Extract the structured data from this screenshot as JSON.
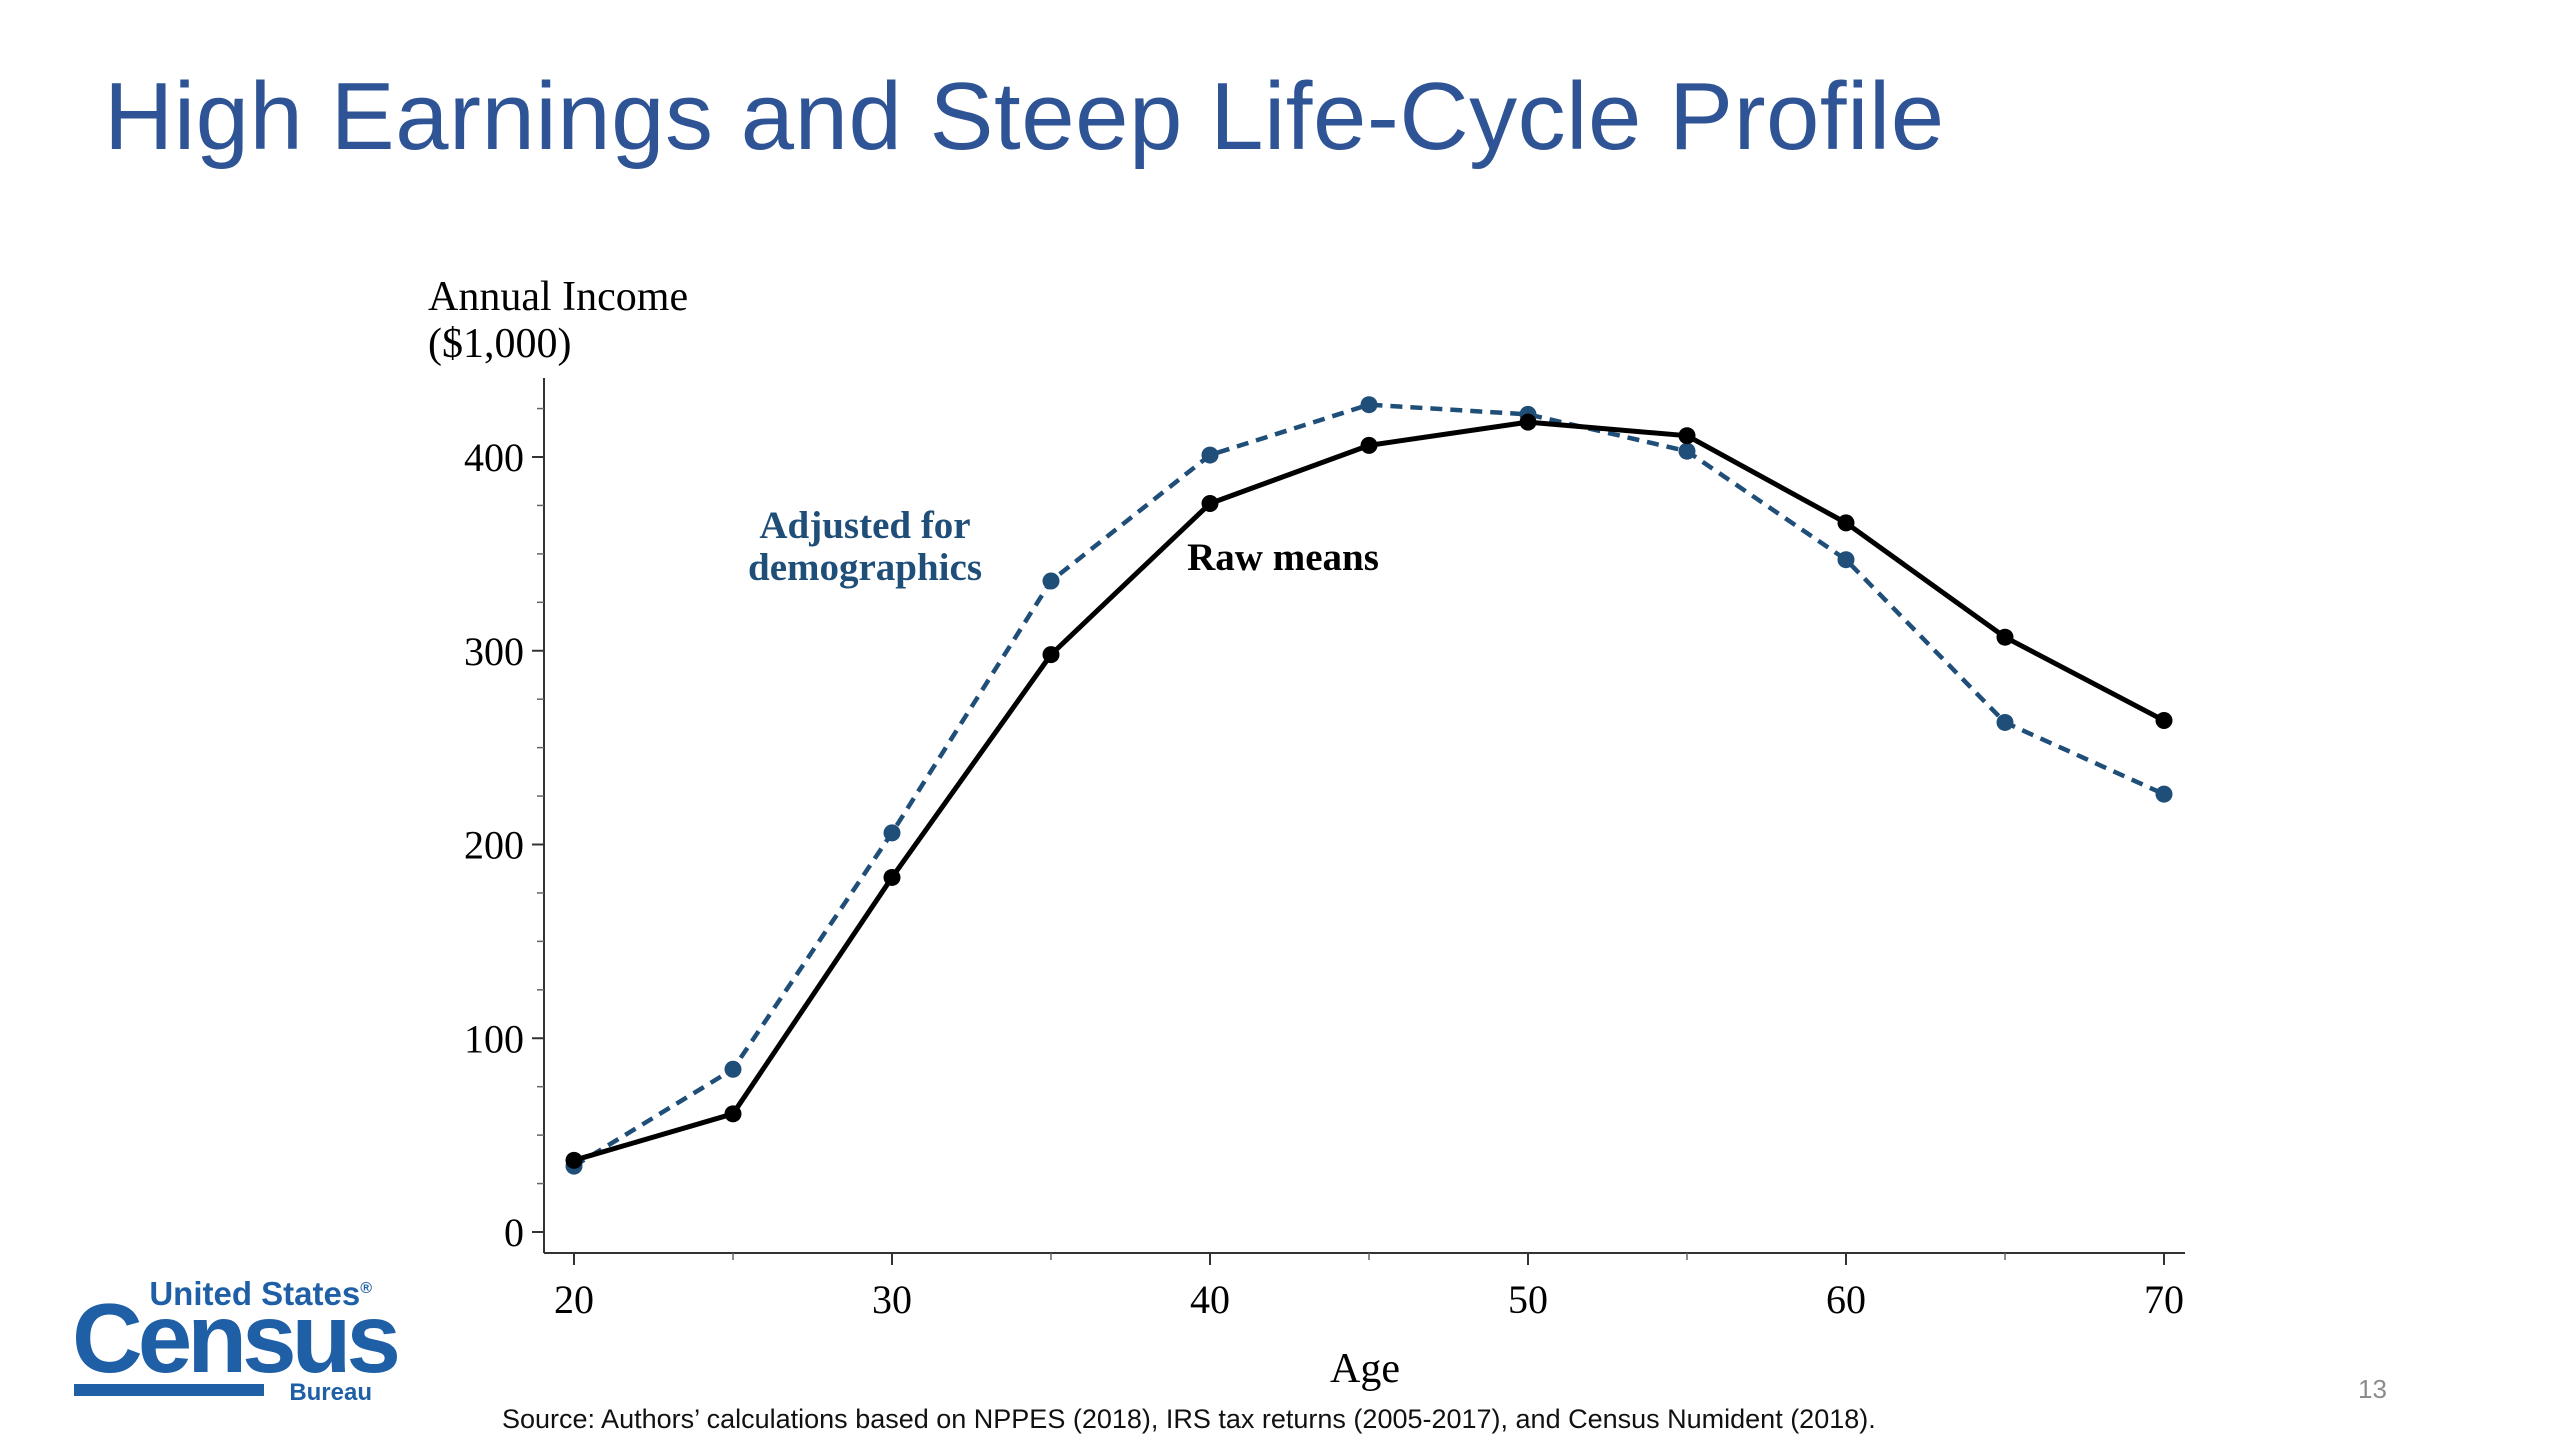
{
  "slide": {
    "title": "High Earnings and Steep Life-Cycle Profile",
    "source": "Source: Authors’ calculations based on NPPES (2018), IRS tax returns (2005-2017), and Census Numident (2018).",
    "page_number": "13"
  },
  "logo": {
    "top_text": "United States",
    "registered": "®",
    "main_text": "Census",
    "sub_text": "Bureau"
  },
  "chart_data": {
    "type": "line",
    "title": "",
    "xlabel": "Age",
    "ylabel": "Annual Income",
    "ylabel_unit": "($1,000)",
    "xlim": [
      19,
      71
    ],
    "ylim": [
      -12,
      440
    ],
    "x_ticks": [
      20,
      30,
      40,
      50,
      60,
      70
    ],
    "y_ticks": [
      0,
      100,
      200,
      300,
      400
    ],
    "y_minor_step": 25,
    "grid": false,
    "x": [
      20,
      25,
      30,
      35,
      40,
      45,
      50,
      55,
      60,
      65,
      70
    ],
    "series": [
      {
        "name": "Raw means",
        "style": "solid",
        "color": "#000000",
        "values": [
          37,
          61,
          183,
          298,
          376,
          406,
          418,
          411,
          366,
          307,
          264
        ]
      },
      {
        "name": "Adjusted for demographics",
        "style": "dashed",
        "color": "#1f4e79",
        "values": [
          34,
          84,
          206,
          336,
          401,
          427,
          422,
          403,
          347,
          263,
          226
        ]
      }
    ],
    "annotations": [
      {
        "series": "Adjusted for demographics",
        "lines": [
          "Adjusted for",
          "demographics"
        ]
      },
      {
        "series": "Raw means",
        "lines": [
          "Raw means"
        ]
      }
    ]
  }
}
